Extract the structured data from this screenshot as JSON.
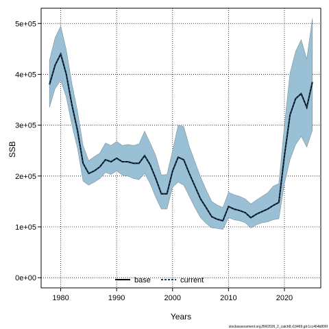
{
  "chart_data": {
    "type": "line",
    "xlabel": "Years",
    "ylabel": "SSB",
    "xlim": [
      1976.5,
      2026.5
    ],
    "ylim": [
      -20000,
      530000
    ],
    "xticks": [
      1980,
      1990,
      2000,
      2010,
      2020
    ],
    "yticks": [
      0,
      100000,
      200000,
      300000,
      400000,
      500000
    ],
    "ytick_labels": [
      "0e+00",
      "1e+05",
      "2e+05",
      "3e+05",
      "4e+05",
      "5e+05"
    ],
    "grid": true,
    "legend_position": "bottom-center",
    "legend": [
      {
        "label": "base",
        "style": "solid",
        "color": "#000000"
      },
      {
        "label": "current",
        "style": "dashed",
        "color": "#1a3a5c"
      }
    ],
    "band_color": "#9ac0d6",
    "band_edge_color": "#7f8f99",
    "footnote": "stockassessment.org,BW2026_2_catch8,r19469,git:1cc464b806f",
    "years": [
      1978,
      1979,
      1980,
      1981,
      1982,
      1983,
      1984,
      1985,
      1986,
      1987,
      1988,
      1989,
      1990,
      1991,
      1992,
      1993,
      1994,
      1995,
      1996,
      1997,
      1998,
      1999,
      2000,
      2001,
      2002,
      2003,
      2004,
      2005,
      2006,
      2007,
      2008,
      2009,
      2010,
      2011,
      2012,
      2013,
      2014,
      2015,
      2016,
      2017,
      2018,
      2019,
      2020,
      2021,
      2022,
      2023,
      2024,
      2025
    ],
    "series": [
      {
        "name": "base",
        "values": [
          380000,
          418000,
          440000,
          400000,
          340000,
          290000,
          225000,
          205000,
          210000,
          218000,
          232000,
          228000,
          235000,
          228000,
          228000,
          225000,
          225000,
          240000,
          222000,
          195000,
          165000,
          165000,
          210000,
          237000,
          232000,
          205000,
          180000,
          155000,
          138000,
          120000,
          115000,
          112000,
          140000,
          135000,
          132000,
          128000,
          118000,
          125000,
          130000,
          135000,
          142000,
          148000,
          240000,
          320000,
          352000,
          362000,
          335000,
          385000
        ],
        "lower": [
          335000,
          372000,
          388000,
          355000,
          300000,
          255000,
          190000,
          182000,
          188000,
          195000,
          207000,
          203000,
          210000,
          202000,
          200000,
          195000,
          193000,
          205000,
          185000,
          158000,
          135000,
          135000,
          178000,
          188000,
          182000,
          160000,
          138000,
          118000,
          107000,
          98000,
          97000,
          95000,
          118000,
          114000,
          112000,
          108000,
          98000,
          104000,
          108000,
          110000,
          114000,
          116000,
          185000,
          232000,
          262000,
          278000,
          257000,
          290000
        ],
        "upper": [
          428000,
          472000,
          495000,
          448000,
          382000,
          328000,
          260000,
          230000,
          238000,
          245000,
          265000,
          260000,
          268000,
          260000,
          262000,
          260000,
          263000,
          288000,
          265000,
          240000,
          202000,
          203000,
          250000,
          300000,
          297000,
          258000,
          228000,
          198000,
          173000,
          150000,
          143000,
          138000,
          168000,
          163000,
          160000,
          155000,
          145000,
          153000,
          160000,
          167000,
          180000,
          185000,
          300000,
          402000,
          445000,
          468000,
          430000,
          510000
        ]
      },
      {
        "name": "current",
        "values": [
          380000,
          418000,
          440000,
          400000,
          340000,
          290000,
          225000,
          205000,
          210000,
          218000,
          232000,
          228000,
          235000,
          228000,
          228000,
          225000,
          225000,
          240000,
          222000,
          195000,
          165000,
          165000,
          210000,
          237000,
          232000,
          205000,
          180000,
          155000,
          138000,
          120000,
          115000,
          112000,
          140000,
          135000,
          132000,
          128000,
          118000,
          125000,
          130000,
          135000,
          142000,
          148000,
          240000,
          320000,
          352000,
          362000,
          335000,
          385000
        ]
      }
    ]
  }
}
